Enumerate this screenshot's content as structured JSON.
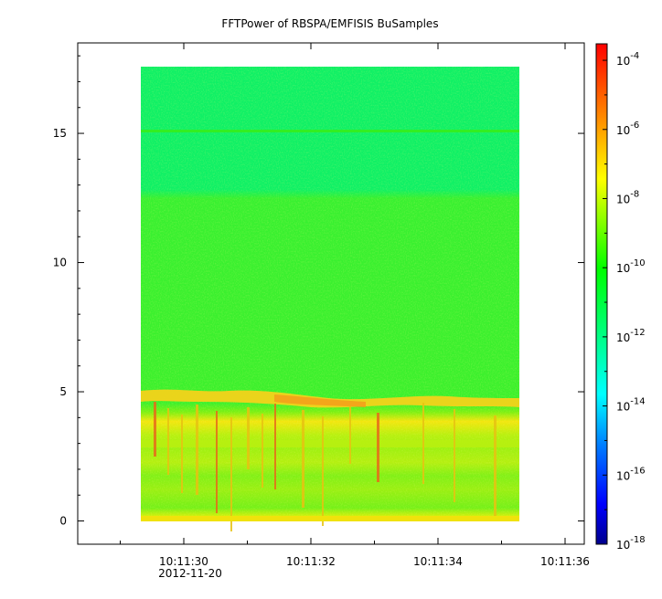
{
  "chart_data": {
    "type": "heatmap",
    "title": "FFTPower of RBSPA/EMFISIS  BuSamples",
    "x_tick_labels": [
      "10:11:30",
      "10:11:32",
      "10:11:34",
      "10:11:36"
    ],
    "x_date_label": "2012-11-20",
    "y_tick_labels": [
      "0",
      "5",
      "10",
      "15"
    ],
    "ylim": [
      -0.9,
      18.5
    ],
    "data_extent": {
      "time_start": "10:11:29.35",
      "time_end": "10:11:35.3",
      "y_min": 0,
      "y_max": 17.5
    },
    "colorbar": {
      "scale": "log",
      "range": [
        "1e-18",
        "3e-4"
      ],
      "tick_labels": [
        {
          "base": "10",
          "exp": "-4"
        },
        {
          "base": "10",
          "exp": "-6"
        },
        {
          "base": "10",
          "exp": "-8"
        },
        {
          "base": "10",
          "exp": "-10"
        },
        {
          "base": "10",
          "exp": "-12"
        },
        {
          "base": "10",
          "exp": "-14"
        },
        {
          "base": "10",
          "exp": "-16"
        },
        {
          "base": "10",
          "exp": "-18"
        }
      ],
      "colors": [
        "#00008c",
        "#0000ff",
        "#0080ff",
        "#00ffff",
        "#00ff80",
        "#00ff00",
        "#80ff00",
        "#ffff00",
        "#ffa000",
        "#ff0000"
      ]
    }
  }
}
